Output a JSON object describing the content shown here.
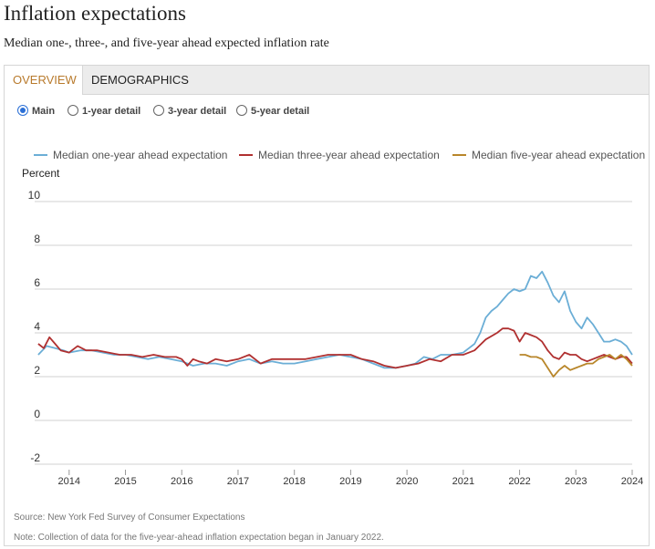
{
  "header": {
    "title": "Inflation expectations",
    "subtitle": "Median one-, three-, and five-year ahead expected inflation rate"
  },
  "tabs": [
    {
      "label": "OVERVIEW",
      "active": true
    },
    {
      "label": "DEMOGRAPHICS",
      "active": false
    }
  ],
  "radios": [
    {
      "label": "Main",
      "checked": true
    },
    {
      "label": "1-year detail",
      "checked": false
    },
    {
      "label": "3-year detail",
      "checked": false
    },
    {
      "label": "5-year detail",
      "checked": false
    }
  ],
  "footer": {
    "source": "Source: New York Fed Survey of Consumer Expectations",
    "note": "Note: Collection of data for the five-year-ahead inflation expectation began in January 2022."
  },
  "chart_data": {
    "type": "line",
    "ylabel": "Percent",
    "ylim": [
      -2,
      10
    ],
    "yticks": [
      10,
      8,
      6,
      4,
      2,
      0,
      -2
    ],
    "xlim": [
      2013.42,
      2024.0
    ],
    "xticks": [
      2014,
      2015,
      2016,
      2017,
      2018,
      2019,
      2020,
      2021,
      2022,
      2023,
      2024
    ],
    "grid": true,
    "legend_position": "top",
    "series": [
      {
        "name": "Median one-year ahead expectation",
        "color": "#6baed6",
        "x": [
          2013.45,
          2013.6,
          2013.75,
          2013.9,
          2014.0,
          2014.2,
          2014.4,
          2014.6,
          2014.8,
          2015.0,
          2015.2,
          2015.4,
          2015.6,
          2015.8,
          2016.0,
          2016.2,
          2016.4,
          2016.6,
          2016.8,
          2017.0,
          2017.2,
          2017.4,
          2017.6,
          2017.8,
          2018.0,
          2018.2,
          2018.4,
          2018.6,
          2018.8,
          2019.0,
          2019.2,
          2019.4,
          2019.6,
          2019.8,
          2020.0,
          2020.15,
          2020.3,
          2020.45,
          2020.6,
          2020.8,
          2021.0,
          2021.1,
          2021.2,
          2021.3,
          2021.4,
          2021.5,
          2021.6,
          2021.7,
          2021.8,
          2021.9,
          2022.0,
          2022.1,
          2022.2,
          2022.3,
          2022.4,
          2022.5,
          2022.6,
          2022.7,
          2022.8,
          2022.9,
          2023.0,
          2023.1,
          2023.2,
          2023.3,
          2023.4,
          2023.5,
          2023.6,
          2023.7,
          2023.8,
          2023.9,
          2024.0
        ],
        "values": [
          3.0,
          3.4,
          3.3,
          3.2,
          3.1,
          3.2,
          3.2,
          3.1,
          3.0,
          3.0,
          2.9,
          2.8,
          2.9,
          2.8,
          2.7,
          2.5,
          2.6,
          2.6,
          2.5,
          2.7,
          2.8,
          2.6,
          2.7,
          2.6,
          2.6,
          2.7,
          2.8,
          2.9,
          3.0,
          2.9,
          2.8,
          2.6,
          2.4,
          2.4,
          2.5,
          2.6,
          2.9,
          2.8,
          3.0,
          3.0,
          3.1,
          3.3,
          3.5,
          4.0,
          4.7,
          5.0,
          5.2,
          5.5,
          5.8,
          6.0,
          5.9,
          6.0,
          6.6,
          6.5,
          6.8,
          6.3,
          5.7,
          5.4,
          5.9,
          5.0,
          4.5,
          4.2,
          4.7,
          4.4,
          4.0,
          3.6,
          3.6,
          3.7,
          3.6,
          3.4,
          3.0
        ]
      },
      {
        "name": "Median three-year ahead expectation",
        "color": "#b03030",
        "x": [
          2013.45,
          2013.55,
          2013.65,
          2013.75,
          2013.85,
          2014.0,
          2014.15,
          2014.3,
          2014.5,
          2014.7,
          2014.9,
          2015.1,
          2015.3,
          2015.5,
          2015.7,
          2015.9,
          2016.0,
          2016.1,
          2016.2,
          2016.3,
          2016.45,
          2016.6,
          2016.8,
          2017.0,
          2017.2,
          2017.4,
          2017.6,
          2017.8,
          2018.0,
          2018.2,
          2018.4,
          2018.6,
          2018.8,
          2019.0,
          2019.2,
          2019.4,
          2019.6,
          2019.8,
          2020.0,
          2020.2,
          2020.4,
          2020.6,
          2020.8,
          2021.0,
          2021.2,
          2021.4,
          2021.6,
          2021.7,
          2021.8,
          2021.9,
          2022.0,
          2022.1,
          2022.2,
          2022.3,
          2022.4,
          2022.5,
          2022.6,
          2022.7,
          2022.8,
          2022.9,
          2023.0,
          2023.1,
          2023.2,
          2023.3,
          2023.4,
          2023.5,
          2023.6,
          2023.7,
          2023.8,
          2023.9,
          2024.0
        ],
        "values": [
          3.5,
          3.3,
          3.8,
          3.5,
          3.2,
          3.1,
          3.4,
          3.2,
          3.2,
          3.1,
          3.0,
          3.0,
          2.9,
          3.0,
          2.9,
          2.9,
          2.8,
          2.5,
          2.8,
          2.7,
          2.6,
          2.8,
          2.7,
          2.8,
          3.0,
          2.6,
          2.8,
          2.8,
          2.8,
          2.8,
          2.9,
          3.0,
          3.0,
          3.0,
          2.8,
          2.7,
          2.5,
          2.4,
          2.5,
          2.6,
          2.8,
          2.7,
          3.0,
          3.0,
          3.2,
          3.7,
          4.0,
          4.2,
          4.2,
          4.1,
          3.6,
          4.0,
          3.9,
          3.8,
          3.6,
          3.2,
          2.9,
          2.8,
          3.1,
          3.0,
          3.0,
          2.8,
          2.7,
          2.8,
          2.9,
          3.0,
          2.9,
          2.8,
          2.9,
          2.9,
          2.6
        ]
      },
      {
        "name": "Median five-year ahead expectation",
        "color": "#b8862a",
        "x": [
          2022.0,
          2022.1,
          2022.2,
          2022.3,
          2022.4,
          2022.5,
          2022.6,
          2022.7,
          2022.8,
          2022.9,
          2023.0,
          2023.1,
          2023.2,
          2023.3,
          2023.4,
          2023.5,
          2023.6,
          2023.7,
          2023.8,
          2023.9,
          2024.0
        ],
        "values": [
          3.0,
          3.0,
          2.9,
          2.9,
          2.8,
          2.4,
          2.0,
          2.3,
          2.5,
          2.3,
          2.4,
          2.5,
          2.6,
          2.6,
          2.8,
          2.9,
          3.0,
          2.8,
          3.0,
          2.8,
          2.5
        ]
      }
    ]
  }
}
